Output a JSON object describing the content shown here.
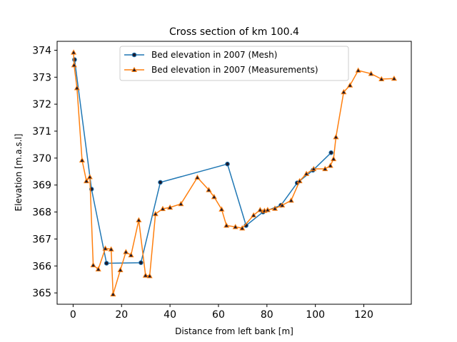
{
  "chart_data": {
    "type": "line",
    "title": "Cross section of km 100.4",
    "xlabel": "Distance from left bank [m]",
    "ylabel": "Elevation [m.a.s.l]",
    "xlim": [
      -6.6,
      139.6
    ],
    "ylim": [
      364.58,
      374.33
    ],
    "xticks": [
      0,
      20,
      40,
      60,
      80,
      100,
      120
    ],
    "yticks": [
      365,
      366,
      367,
      368,
      369,
      370,
      371,
      372,
      373,
      374
    ],
    "legend": "upper-center",
    "series": [
      {
        "name": "Bed elevation in 2007 (Mesh)",
        "color": "#1f77b4",
        "marker": "circle",
        "marker_face": "#1a1a2e",
        "x": [
          0.6,
          7.6,
          13.8,
          28.0,
          36.0,
          63.7,
          71.4,
          78.4,
          85.8,
          92.5,
          99.0,
          106.5
        ],
        "y": [
          373.65,
          368.85,
          366.1,
          366.12,
          369.1,
          369.78,
          367.5,
          368.0,
          368.25,
          369.08,
          369.55,
          370.2
        ]
      },
      {
        "name": "Bed elevation in 2007 (Measurements)",
        "color": "#ff7f0e",
        "marker": "triangle",
        "marker_face": "#1a1a2e",
        "x": [
          0.2,
          0.4,
          1.6,
          3.7,
          5.5,
          6.9,
          8.3,
          10.4,
          13.3,
          15.7,
          16.5,
          19.5,
          21.8,
          23.9,
          27.1,
          29.9,
          31.6,
          34.0,
          37.0,
          40.0,
          44.5,
          51.3,
          56.0,
          58.2,
          61.3,
          63.3,
          67.0,
          69.8,
          74.5,
          77.2,
          79.0,
          80.3,
          83.3,
          86.3,
          90.0,
          93.5,
          96.3,
          99.3,
          104.0,
          106.2,
          107.5,
          108.5,
          111.7,
          114.3,
          117.7,
          123.0,
          127.3,
          132.5
        ],
        "y": [
          373.92,
          373.45,
          372.6,
          369.92,
          369.15,
          369.3,
          366.03,
          365.88,
          366.65,
          366.62,
          364.95,
          365.85,
          366.52,
          366.4,
          367.7,
          365.65,
          365.63,
          367.93,
          368.12,
          368.17,
          368.3,
          369.28,
          368.82,
          368.56,
          368.1,
          367.5,
          367.45,
          367.4,
          367.88,
          368.08,
          368.05,
          368.08,
          368.13,
          368.25,
          368.43,
          369.15,
          369.42,
          369.6,
          369.6,
          369.72,
          369.97,
          370.78,
          372.45,
          372.7,
          373.25,
          373.13,
          372.93,
          372.95
        ]
      }
    ]
  }
}
